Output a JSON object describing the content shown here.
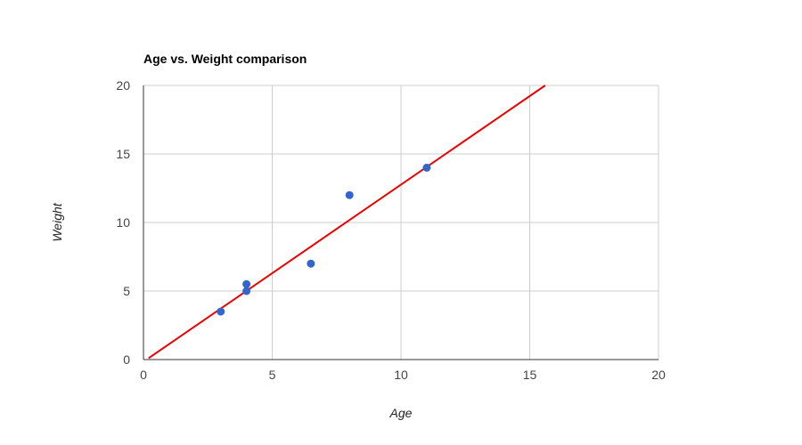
{
  "chart_data": {
    "type": "scatter",
    "title": "Age vs. Weight comparison",
    "xlabel": "Age",
    "ylabel": "Weight",
    "xlim": [
      0,
      20
    ],
    "ylim": [
      0,
      20
    ],
    "x_ticks": [
      "0",
      "5",
      "10",
      "15",
      "20"
    ],
    "y_ticks": [
      "0",
      "5",
      "10",
      "15",
      "20"
    ],
    "grid": true,
    "legend": "none",
    "series": [
      {
        "color": "#3366cc",
        "points": [
          {
            "x": 8,
            "y": 12
          },
          {
            "x": 4,
            "y": 5.5
          },
          {
            "x": 11,
            "y": 14
          },
          {
            "x": 4,
            "y": 5
          },
          {
            "x": 3,
            "y": 3.5
          },
          {
            "x": 6.5,
            "y": 7
          }
        ]
      }
    ],
    "trendline": {
      "type": "linear",
      "color": "#ee0000",
      "from": {
        "x": 0.2,
        "y": 0.1
      },
      "to": {
        "x": 15.6,
        "y": 20
      }
    }
  }
}
